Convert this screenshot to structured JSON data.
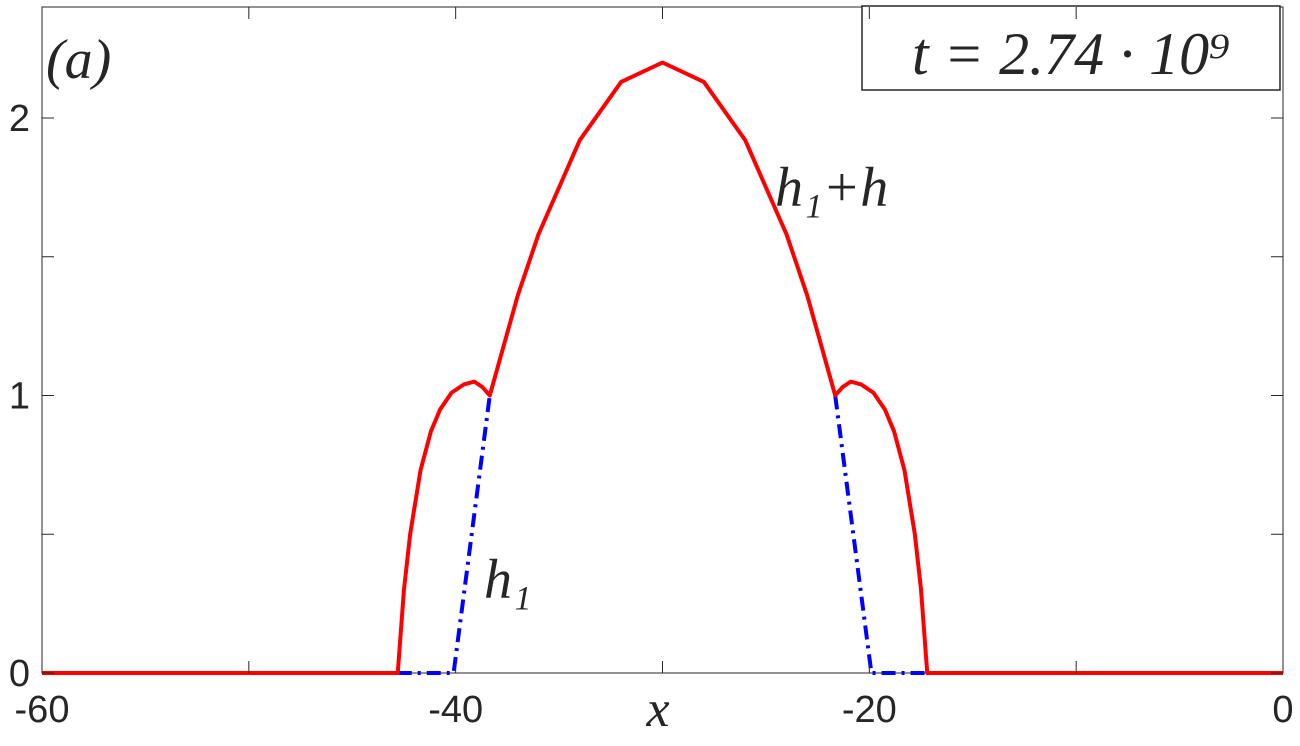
{
  "chart_data": {
    "type": "line",
    "xlabel": "x",
    "xlim": [
      -60,
      0
    ],
    "xticks": [
      -60,
      -40,
      -20,
      0
    ],
    "xminorticks": [
      -50,
      -30,
      -10
    ],
    "ylim": [
      0,
      2.4
    ],
    "yticks": [
      0,
      1,
      2
    ],
    "yminorticks": [
      0.5,
      1.5
    ],
    "annotations": [
      "(a)",
      "t = 2.74 · 10⁹",
      "h₁+h",
      "h₁"
    ],
    "series": [
      {
        "name": "h₁+h",
        "color": "#ff0000",
        "dash": "solid",
        "x": [
          -60,
          -42.8,
          -42.5,
          -42.2,
          -41.7,
          -41.2,
          -40.75,
          -40.2,
          -39.6,
          -39.1,
          -38.7,
          -38.35,
          -37,
          -36,
          -34,
          -32,
          -30,
          -28,
          -26,
          -24,
          -23,
          -21.65,
          -21.3,
          -20.9,
          -20.4,
          -19.8,
          -19.25,
          -18.8,
          -18.3,
          -17.8,
          -17.5,
          -17.2,
          0
        ],
        "values": [
          0,
          0,
          0.3,
          0.5,
          0.73,
          0.87,
          0.95,
          1.01,
          1.04,
          1.05,
          1.03,
          1.0,
          1.36,
          1.58,
          1.92,
          2.13,
          2.2,
          2.13,
          1.92,
          1.58,
          1.36,
          1.0,
          1.03,
          1.05,
          1.04,
          1.01,
          0.95,
          0.87,
          0.73,
          0.5,
          0.3,
          0,
          0
        ]
      },
      {
        "name": "h₁",
        "color": "#0000ff",
        "dash": "dashdot",
        "x": [
          -42.8,
          -40.1,
          -38.35,
          -30,
          -21.65,
          -19.9,
          -17.2
        ],
        "values": [
          0,
          0,
          1,
          null,
          1,
          0,
          0
        ]
      }
    ]
  }
}
